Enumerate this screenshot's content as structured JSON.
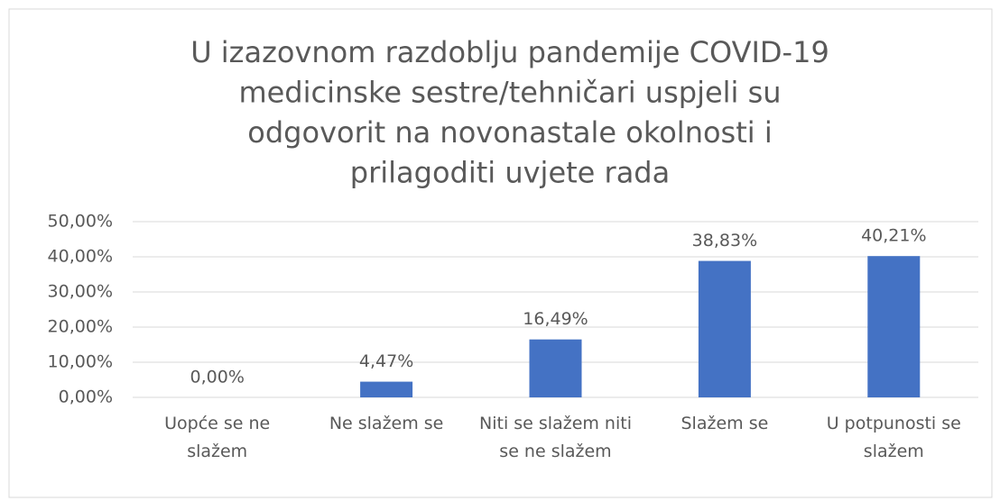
{
  "chart_data": {
    "type": "bar",
    "title": [
      "U izazovnom razdoblju pandemije COVID-19",
      "medicinske sestre/tehničari uspjeli su",
      "odgovorit na novonastale okolnosti i",
      "prilagoditi uvjete rada"
    ],
    "categories": [
      "Uopće se ne slažem",
      "Ne slažem se",
      "Niti se slažem niti se ne slažem",
      "Slažem se",
      "U potpunosti se slažem"
    ],
    "values": [
      0,
      4.47,
      16.49,
      38.83,
      40.21
    ],
    "value_labels": [
      "0,00%",
      "4,47%",
      "16,49%",
      "38,83%",
      "40,21%"
    ],
    "color": "#4472c4",
    "ylim": [
      0,
      50
    ],
    "yticks": [
      {
        "value": 0,
        "label": "0,00%"
      },
      {
        "value": 10,
        "label": "10,00%"
      },
      {
        "value": 20,
        "label": "20,00%"
      },
      {
        "value": 30,
        "label": "30,00%"
      },
      {
        "value": 40,
        "label": "40,00%"
      },
      {
        "value": 50,
        "label": "50,00%"
      }
    ],
    "grid": true
  }
}
